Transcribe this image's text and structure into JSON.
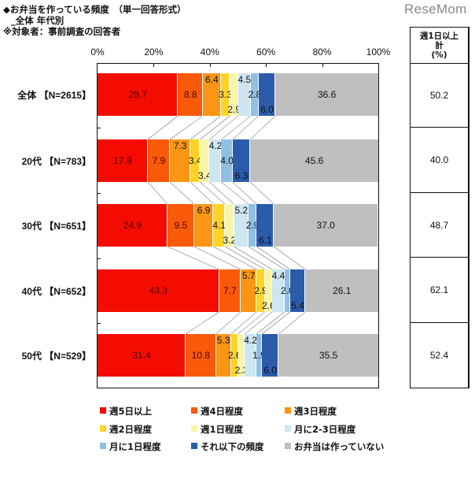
{
  "header": {
    "title_line1": "◆お弁当を作っている頻度　（単一回答形式）",
    "title_line2": "_全体 年代別",
    "title_line3": "※対象者：事前調査の回答者",
    "logo": "ReseMom"
  },
  "table": {
    "header": [
      "週1日以上",
      "計",
      "(%)"
    ],
    "values": [
      "50.2",
      "40.0",
      "48.7",
      "62.1",
      "52.4"
    ]
  },
  "chart_data": {
    "type": "bar",
    "orientation": "horizontal",
    "stacked": "100%",
    "title": "お弁当を作っている頻度 （単一回答形式） 全体 年代別",
    "xlabel": "",
    "ylabel": "",
    "xlim": [
      0,
      100
    ],
    "x_ticks": [
      "0%",
      "20%",
      "40%",
      "60%",
      "80%",
      "100%"
    ],
    "categories": [
      "全体 【N=2615】",
      "20代 【N=783】",
      "30代 【N=651】",
      "40代 【N=652】",
      "50代 【N=529】"
    ],
    "series": [
      {
        "name": "週5日以上",
        "color": "#f40c00",
        "values": [
          28.7,
          17.9,
          24.9,
          43.3,
          31.4
        ]
      },
      {
        "name": "週4日程度",
        "color": "#f85a0a",
        "values": [
          8.8,
          7.9,
          9.5,
          7.7,
          10.8
        ]
      },
      {
        "name": "週3日程度",
        "color": "#fa9515",
        "values": [
          6.4,
          7.3,
          6.9,
          5.7,
          5.3
        ]
      },
      {
        "name": "週2日程度",
        "color": "#fdd426",
        "values": [
          3.3,
          3.4,
          4.1,
          2.9,
          2.6
        ]
      },
      {
        "name": "週1日程度",
        "color": "#f8f5a8",
        "values": [
          2.9,
          3.4,
          3.2,
          2.6,
          2.3
        ]
      },
      {
        "name": "月に2-3日程度",
        "color": "#cde6f0",
        "values": [
          4.5,
          4.2,
          5.2,
          4.4,
          4.2
        ]
      },
      {
        "name": "月に1日程度",
        "color": "#8fbfe3",
        "values": [
          2.8,
          4.0,
          2.9,
          2.0,
          1.9
        ]
      },
      {
        "name": "それ以下の頻度",
        "color": "#2b5bab",
        "values": [
          6.0,
          6.3,
          6.1,
          5.4,
          6.0
        ]
      },
      {
        "name": "お弁当は作っていない",
        "color": "#bfbfbf",
        "values": [
          36.6,
          45.6,
          37.0,
          26.1,
          35.5
        ]
      }
    ],
    "side_table": {
      "header": "週1日以上計(%)",
      "values": [
        50.2,
        40.0,
        48.7,
        62.1,
        52.4
      ]
    },
    "legend_position": "bottom",
    "grid": false,
    "connector_lines": true
  }
}
